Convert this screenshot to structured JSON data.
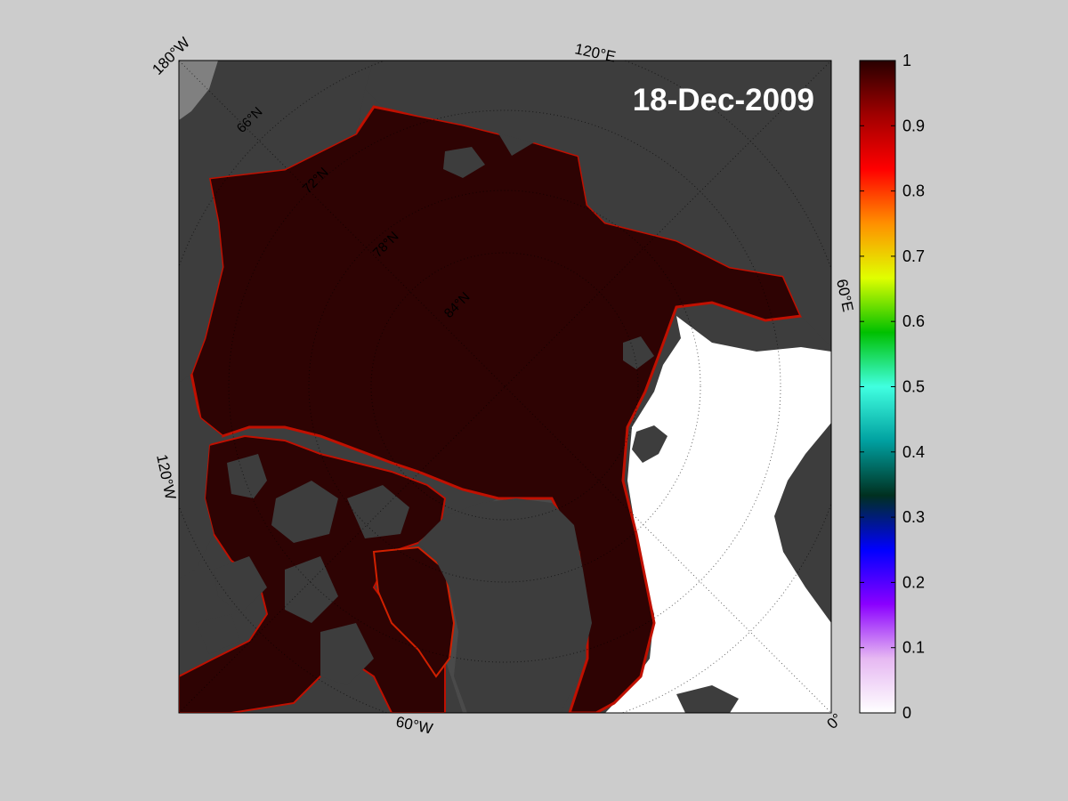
{
  "date": "18-Dec-2009",
  "longitude_labels": {
    "w180": "180°W",
    "e120": "120°E",
    "e60": "60°E",
    "w120": "120°W",
    "w60": "60°W",
    "zero": "0°"
  },
  "latitude_labels": {
    "lat66": "66°N",
    "lat72": "72°N",
    "lat78": "78°N",
    "lat84": "84°N"
  },
  "colorbar": {
    "min": 0,
    "max": 1,
    "ticks": [
      "0",
      "0.1",
      "0.2",
      "0.3",
      "0.4",
      "0.5",
      "0.6",
      "0.7",
      "0.8",
      "0.9",
      "1"
    ],
    "stops": [
      "#ffffff",
      "#e6b8f2",
      "#8a00ff",
      "#0000ff",
      "#003020",
      "#00a0a0",
      "#40ffe0",
      "#00c000",
      "#e0ff00",
      "#ff9000",
      "#ff0000",
      "#a00000",
      "#280000"
    ]
  },
  "colors": {
    "background": "#cccccc",
    "ice": "#2e0303",
    "land": "#3d3d3d",
    "land_light": "#808080",
    "open_water": "#ffffff",
    "ice_edge": "#c01000"
  }
}
